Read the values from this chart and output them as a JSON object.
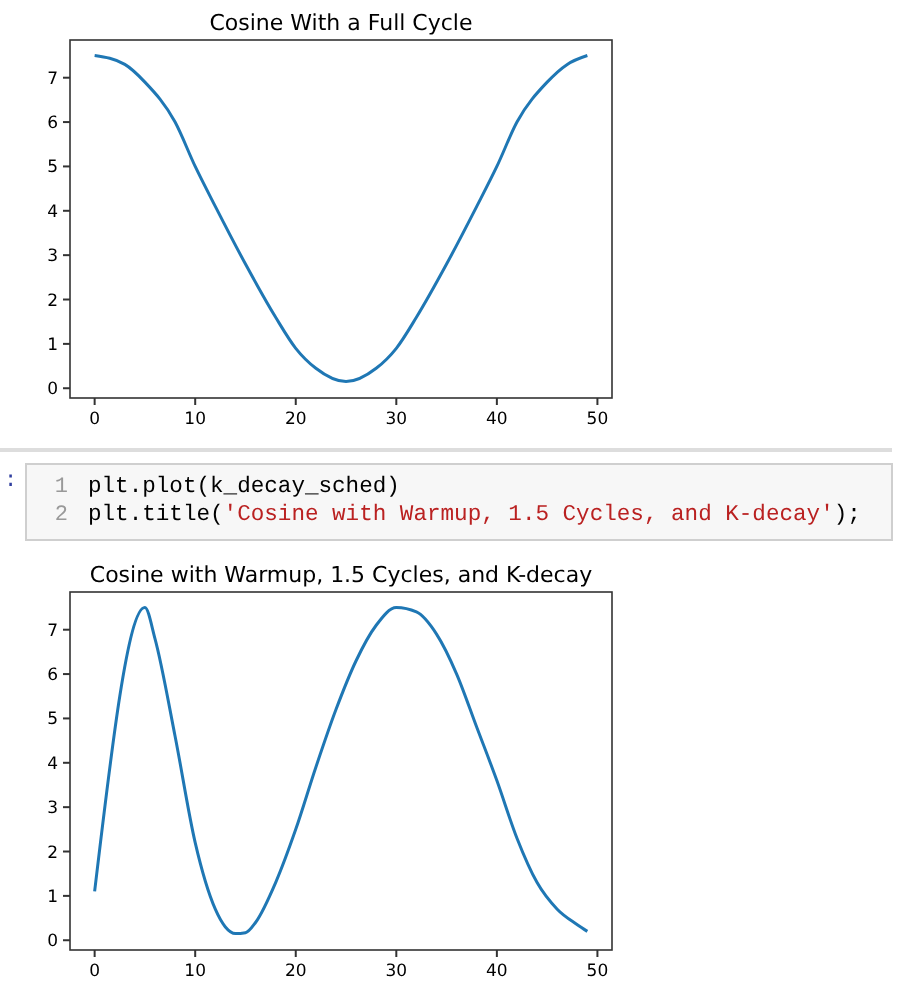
{
  "chart_data": [
    {
      "type": "line",
      "title": "Cosine With a Full Cycle",
      "xlim": [
        -2.45,
        51.45
      ],
      "ylim": [
        -0.22,
        7.85
      ],
      "xticks": [
        0,
        10,
        20,
        30,
        40,
        50
      ],
      "yticks": [
        0,
        1,
        2,
        3,
        4,
        5,
        6,
        7
      ],
      "grid": false,
      "series": [
        {
          "color": "#1f77b4",
          "x": [
            0,
            3,
            5,
            8,
            10,
            12,
            15,
            18,
            20,
            22,
            25,
            28,
            30,
            32,
            35,
            38,
            40,
            42,
            45,
            47,
            49
          ],
          "values": [
            7.5,
            7.3,
            6.9,
            6.0,
            5.0,
            4.1,
            2.8,
            1.6,
            0.9,
            0.45,
            0.15,
            0.45,
            0.9,
            1.6,
            2.8,
            4.1,
            5.0,
            6.0,
            6.9,
            7.3,
            7.5
          ]
        }
      ]
    },
    {
      "type": "other",
      "annotations": [
        ":",
        "1",
        "plt.plot(k_decay_sched)",
        "2",
        "plt.title('Cosine with Warmup, 1.5 Cycles, and K-decay');"
      ]
    },
    {
      "type": "line",
      "title": "Cosine with Warmup, 1.5 Cycles, and K-decay",
      "xlim": [
        -2.45,
        51.45
      ],
      "ylim": [
        -0.22,
        7.85
      ],
      "xticks": [
        0,
        10,
        20,
        30,
        40,
        50
      ],
      "yticks": [
        0,
        1,
        2,
        3,
        4,
        5,
        6,
        7
      ],
      "grid": false,
      "series": [
        {
          "color": "#1f77b4",
          "x": [
            0,
            5,
            6,
            8,
            10,
            12,
            13,
            14,
            15,
            16,
            18,
            20,
            22,
            24,
            26,
            28,
            30,
            32,
            34,
            36,
            38,
            40,
            42,
            44,
            46,
            48,
            49
          ],
          "values": [
            1.1,
            7.5,
            6.8,
            4.6,
            2.2,
            0.7,
            0.3,
            0.15,
            0.17,
            0.4,
            1.3,
            2.5,
            3.9,
            5.2,
            6.3,
            7.1,
            7.5,
            7.4,
            6.9,
            6.0,
            4.8,
            3.6,
            2.3,
            1.3,
            0.7,
            0.35,
            0.2
          ]
        }
      ]
    }
  ]
}
